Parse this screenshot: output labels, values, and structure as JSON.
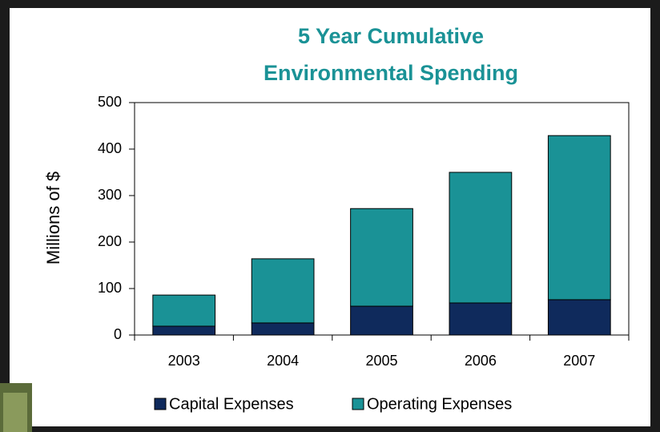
{
  "chart_data": {
    "type": "stacked-bar",
    "title": [
      "5 Year Cumulative",
      "Environmental Spending"
    ],
    "ylabel": "Millions of $",
    "categories": [
      "2003",
      "2004",
      "2005",
      "2006",
      "2007"
    ],
    "series": [
      {
        "name": "Capital Expenses",
        "color": "#0f2a5c",
        "values": [
          19,
          26,
          62,
          69,
          76
        ]
      },
      {
        "name": "Operating Expenses",
        "color": "#1a9296",
        "values": [
          67,
          138,
          210,
          281,
          353
        ]
      }
    ],
    "ylim": [
      0,
      500
    ],
    "yticks": [
      0,
      100,
      200,
      300,
      400,
      500
    ],
    "grid": false,
    "title_color": "#1a9296",
    "legend": "bottom"
  }
}
